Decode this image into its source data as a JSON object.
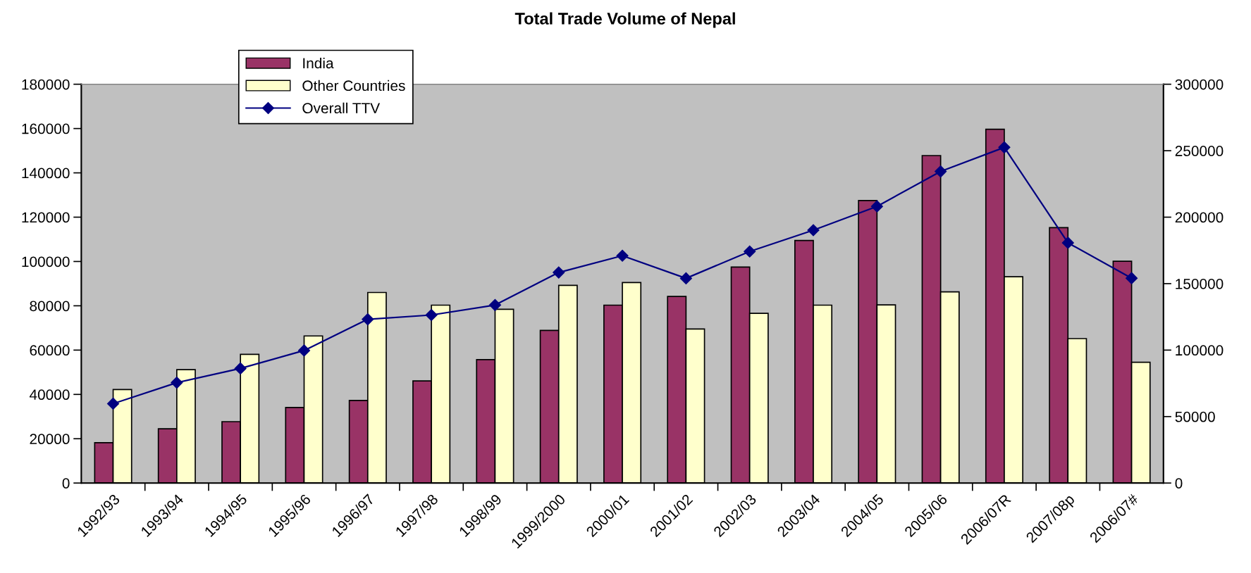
{
  "chart_data": {
    "type": "bar",
    "title": "Total Trade Volume of Nepal",
    "categories": [
      "1992/93",
      "1993/94",
      "1994/95",
      "1995/96",
      "1996/97",
      "1997/98",
      "1998/99",
      "1999/2000",
      "2000/01",
      "2001/02",
      "2002/03",
      "2003/04",
      "2004/05",
      "2005/06",
      "2006/07R",
      "2007/08p",
      "2006/07#"
    ],
    "series": [
      {
        "name": "India",
        "color": "#993366",
        "values": [
          18200,
          24500,
          27700,
          34100,
          37300,
          46100,
          55700,
          68900,
          80300,
          84200,
          97500,
          109500,
          127500,
          147800,
          159700,
          115300,
          100100
        ]
      },
      {
        "name": "Other Countries",
        "color": "#ffffcc",
        "values": [
          42200,
          51200,
          58100,
          66400,
          86000,
          80300,
          78400,
          89200,
          90500,
          69500,
          76600,
          80300,
          80400,
          86300,
          93100,
          65200,
          54500
        ]
      },
      {
        "name": "Overall TTV",
        "type": "line",
        "axis": "y2",
        "color": "#000080",
        "marker": "diamond",
        "values": [
          59700,
          75500,
          86200,
          99700,
          123200,
          126400,
          133900,
          158400,
          171000,
          154000,
          174200,
          190200,
          208100,
          234400,
          252500,
          180700,
          154100
        ]
      }
    ],
    "ylim": [
      0,
      180000
    ],
    "yticks": [
      0,
      20000,
      40000,
      60000,
      80000,
      100000,
      120000,
      140000,
      160000,
      180000
    ],
    "y2lim": [
      0,
      300000
    ],
    "y2ticks": [
      0,
      50000,
      100000,
      150000,
      200000,
      250000,
      300000
    ],
    "legend": "top left",
    "grid": false
  }
}
